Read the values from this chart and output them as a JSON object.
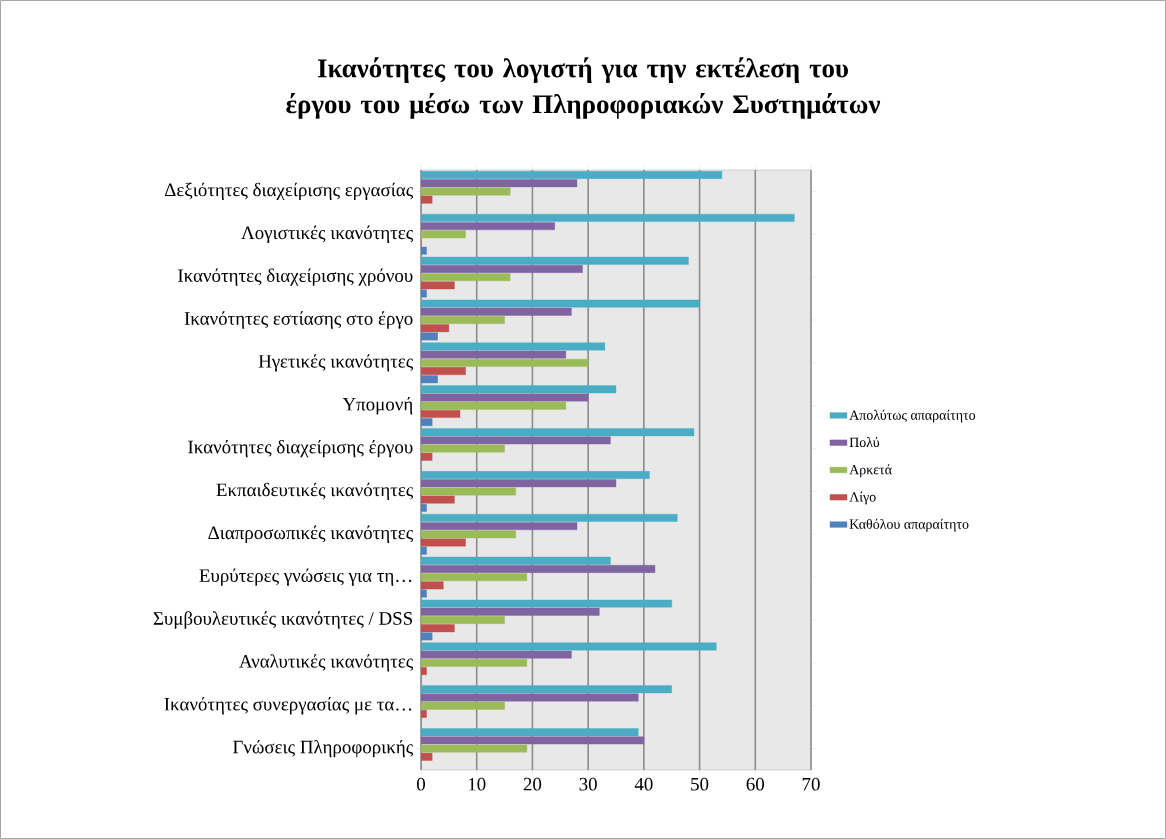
{
  "chart_data": {
    "type": "bar",
    "orientation": "horizontal",
    "title": "Ικανότητες του λογιστή για την εκτέλεση του έργου του μέσω των Πληροφοριακών Συστημάτων",
    "categories": [
      "Δεξιότητες διαχείρισης εργασίας",
      "Λογιστικές ικανότητες",
      "Ικανότητες διαχείρισης χρόνου",
      "Ικανότητες εστίασης στο έργο",
      "Ηγετικές ικανότητες",
      "Υπομονή",
      "Ικανότητες διαχείρισης έργου",
      "Εκπαιδευτικές ικανότητες",
      "Διαπροσωπικές ικανότητες",
      "Ευρύτερες γνώσεις για τη…",
      "Συμβουλευτικές ικανότητες / DSS",
      "Αναλυτικές ικανότητες",
      "Ικανότητες συνεργασίας με τα…",
      "Γνώσεις Πληροφορικής"
    ],
    "series": [
      {
        "name": "Απολύτως απαραίτητο",
        "color": "#4bacc6",
        "values": [
          54,
          67,
          48,
          50,
          33,
          35,
          49,
          41,
          46,
          34,
          45,
          53,
          45,
          39
        ]
      },
      {
        "name": "Πολύ",
        "color": "#8064a2",
        "values": [
          28,
          24,
          29,
          27,
          26,
          30,
          34,
          35,
          28,
          42,
          32,
          27,
          39,
          40
        ]
      },
      {
        "name": "Αρκετά",
        "color": "#9bbb59",
        "values": [
          16,
          8,
          16,
          15,
          30,
          26,
          15,
          17,
          17,
          19,
          15,
          19,
          15,
          19
        ]
      },
      {
        "name": "Λίγο",
        "color": "#c0504d",
        "values": [
          2,
          0,
          6,
          5,
          8,
          7,
          2,
          6,
          8,
          4,
          6,
          1,
          1,
          2
        ]
      },
      {
        "name": "Καθόλου απαραίτητο",
        "color": "#4f81bd",
        "values": [
          0,
          1,
          1,
          3,
          3,
          2,
          0,
          1,
          1,
          1,
          2,
          0,
          0,
          0
        ]
      }
    ],
    "xlim": [
      0,
      70
    ],
    "xticks": [
      0,
      10,
      20,
      30,
      40,
      50,
      60,
      70
    ],
    "grid": "x",
    "legend": "right"
  }
}
